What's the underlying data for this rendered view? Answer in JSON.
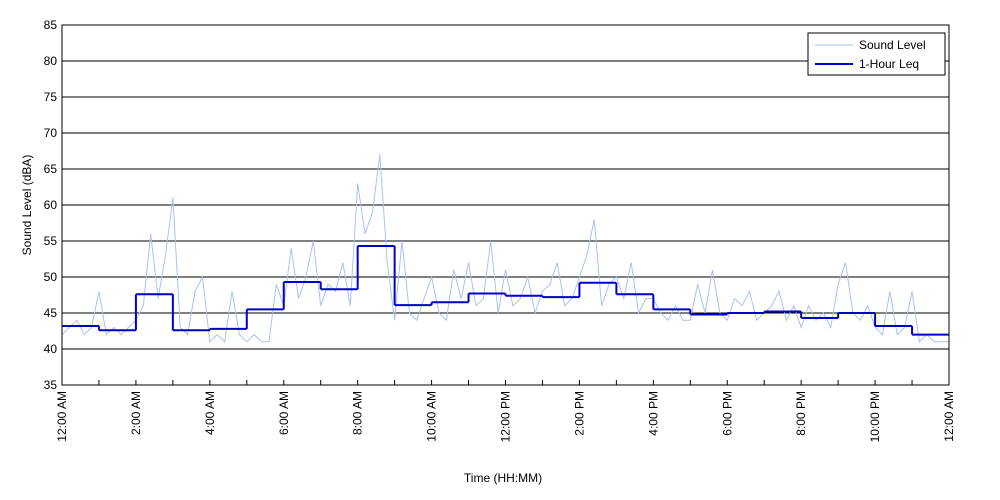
{
  "chart_data": {
    "type": "line",
    "xlabel": "Time (HH:MM)",
    "ylabel": "Sound Level (dBA)",
    "xlim": [
      0,
      24
    ],
    "ylim": [
      35,
      85
    ],
    "yticks": [
      35,
      40,
      45,
      50,
      55,
      60,
      65,
      70,
      75,
      80,
      85
    ],
    "xticks": [
      {
        "value": 0,
        "label": "12:00 AM"
      },
      {
        "value": 2,
        "label": "2:00 AM"
      },
      {
        "value": 4,
        "label": "4:00 AM"
      },
      {
        "value": 6,
        "label": "6:00 AM"
      },
      {
        "value": 8,
        "label": "8:00 AM"
      },
      {
        "value": 10,
        "label": "10:00 AM"
      },
      {
        "value": 12,
        "label": "12:00 PM"
      },
      {
        "value": 14,
        "label": "2:00 PM"
      },
      {
        "value": 16,
        "label": "4:00 PM"
      },
      {
        "value": 18,
        "label": "6:00 PM"
      },
      {
        "value": 20,
        "label": "8:00 PM"
      },
      {
        "value": 22,
        "label": "10:00 PM"
      },
      {
        "value": 24,
        "label": "12:00 AM"
      }
    ],
    "xminorticks": [
      1,
      3,
      5,
      7,
      9,
      11,
      13,
      15,
      17,
      19,
      21,
      23
    ],
    "grid": true,
    "legend": "upper right",
    "series": [
      {
        "name": "Sound Level",
        "color": "#a9c2f2",
        "step": false,
        "x": [
          0,
          0.2,
          0.4,
          0.6,
          0.8,
          1,
          1.2,
          1.4,
          1.6,
          1.8,
          2,
          2.2,
          2.4,
          2.6,
          2.8,
          3,
          3.2,
          3.4,
          3.6,
          3.8,
          4,
          4.2,
          4.4,
          4.6,
          4.8,
          5,
          5.2,
          5.4,
          5.6,
          5.8,
          6,
          6.2,
          6.4,
          6.6,
          6.8,
          7,
          7.2,
          7.4,
          7.6,
          7.8,
          8,
          8.2,
          8.4,
          8.6,
          8.8,
          9,
          9.2,
          9.4,
          9.6,
          9.8,
          10,
          10.2,
          10.4,
          10.6,
          10.8,
          11,
          11.2,
          11.4,
          11.6,
          11.8,
          12,
          12.2,
          12.4,
          12.6,
          12.8,
          13,
          13.2,
          13.4,
          13.6,
          13.8,
          14,
          14.2,
          14.4,
          14.6,
          14.8,
          15,
          15.2,
          15.4,
          15.6,
          15.8,
          16,
          16.2,
          16.4,
          16.6,
          16.8,
          17,
          17.2,
          17.4,
          17.6,
          17.8,
          18,
          18.2,
          18.4,
          18.6,
          18.8,
          19,
          19.2,
          19.4,
          19.6,
          19.8,
          20,
          20.2,
          20.4,
          20.6,
          20.8,
          21,
          21.2,
          21.4,
          21.6,
          21.8,
          22,
          22.2,
          22.4,
          22.6,
          22.8,
          23,
          23.2,
          23.4,
          23.6,
          23.8,
          24
        ],
        "values": [
          42,
          43,
          44,
          42,
          43,
          48,
          42,
          43,
          42,
          43,
          44,
          46,
          56,
          47,
          53,
          61,
          43,
          42,
          48,
          50,
          41,
          42,
          41,
          48,
          42,
          41,
          42,
          41,
          41,
          49,
          46,
          54,
          47,
          50,
          55,
          46,
          49,
          48,
          52,
          46,
          63,
          56,
          59,
          67,
          52,
          44,
          55,
          45,
          44,
          47,
          50,
          45,
          44,
          51,
          47,
          52,
          46,
          47,
          55,
          45,
          51,
          46,
          47,
          50,
          45,
          48,
          49,
          52,
          46,
          47,
          50,
          53,
          58,
          46,
          49,
          50,
          47,
          52,
          45,
          47,
          47,
          45,
          44,
          46,
          44,
          44,
          49,
          45,
          51,
          45,
          44,
          47,
          46,
          48,
          44,
          45,
          46,
          48,
          44,
          46,
          43,
          46,
          44,
          45,
          43,
          49,
          52,
          45,
          44,
          46,
          43,
          42,
          48,
          42,
          43,
          48,
          41,
          42,
          41,
          41,
          41
        ]
      },
      {
        "name": "1-Hour Leq",
        "color": "#0000cc",
        "step": true,
        "x": [
          0,
          1,
          2,
          3,
          4,
          5,
          6,
          7,
          8,
          9,
          10,
          11,
          12,
          13,
          14,
          15,
          16,
          17,
          18,
          19,
          20,
          21,
          22,
          23
        ],
        "values": [
          43.2,
          42.6,
          47.6,
          42.6,
          42.8,
          45.5,
          49.3,
          48.3,
          54.3,
          46.1,
          46.5,
          47.7,
          47.4,
          47.2,
          49.2,
          47.6,
          45.5,
          44.8,
          45.0,
          45.2,
          44.3,
          45.0,
          43.2,
          42.0
        ]
      }
    ]
  }
}
